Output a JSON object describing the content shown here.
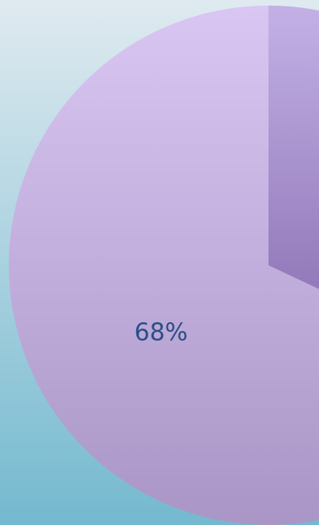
{
  "chart_data": {
    "type": "pie",
    "slices": [
      {
        "value": 68,
        "label": "68%"
      },
      {
        "value": 32,
        "label": ""
      }
    ],
    "legend": "none",
    "colors": {
      "background_top": "#dfeaf0",
      "background_bottom": "#74b9cf",
      "main_slice_top": "#dac6f2",
      "main_slice_bottom": "#a996c6",
      "secondary_slice_top": "#c3b1e6",
      "secondary_slice_bottom": "#8468ac",
      "label_text": "#2a4f86"
    }
  }
}
